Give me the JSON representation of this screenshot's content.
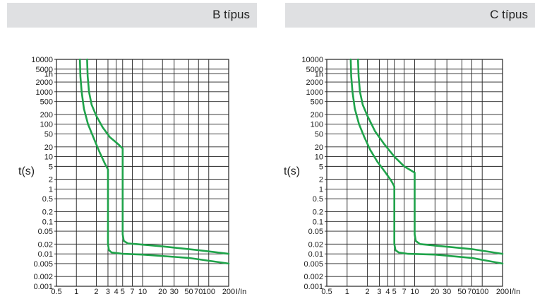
{
  "chart_data": [
    {
      "type": "line",
      "title": "B típus",
      "xlabel": "I/In",
      "ylabel": "t(s)",
      "x_scale": "log",
      "y_scale": "log",
      "xlim": [
        0.5,
        200
      ],
      "ylim": [
        0.001,
        10000
      ],
      "x_ticks": [
        {
          "v": 0.5,
          "label": "0.5"
        },
        {
          "v": 1,
          "label": "1"
        },
        {
          "v": 2,
          "label": "2"
        },
        {
          "v": 3,
          "label": "3"
        },
        {
          "v": 4,
          "label": "4"
        },
        {
          "v": 5,
          "label": "5"
        },
        {
          "v": 7,
          "label": "7"
        },
        {
          "v": 10,
          "label": "10"
        },
        {
          "v": 20,
          "label": "20"
        },
        {
          "v": 30,
          "label": "30"
        },
        {
          "v": 50,
          "label": "50"
        },
        {
          "v": 70,
          "label": "70"
        },
        {
          "v": 100,
          "label": "100"
        },
        {
          "v": 200,
          "label": "200"
        }
      ],
      "y_ticks": [
        {
          "v": 10000,
          "label": "10000"
        },
        {
          "v": 5000,
          "label": "5000"
        },
        {
          "v": 3600,
          "label": "1h"
        },
        {
          "v": 2000,
          "label": "2000"
        },
        {
          "v": 1000,
          "label": "1000"
        },
        {
          "v": 500,
          "label": "500"
        },
        {
          "v": 200,
          "label": "200"
        },
        {
          "v": 100,
          "label": "100"
        },
        {
          "v": 50,
          "label": "50"
        },
        {
          "v": 20,
          "label": "20"
        },
        {
          "v": 10,
          "label": "10"
        },
        {
          "v": 5,
          "label": "5"
        },
        {
          "v": 2,
          "label": "2"
        },
        {
          "v": 1,
          "label": "1"
        },
        {
          "v": 0.5,
          "label": "0.5"
        },
        {
          "v": 0.2,
          "label": "0.2"
        },
        {
          "v": 0.1,
          "label": "0.1"
        },
        {
          "v": 0.05,
          "label": "0.05"
        },
        {
          "v": 0.02,
          "label": "0.02"
        },
        {
          "v": 0.01,
          "label": "0.01"
        },
        {
          "v": 0.005,
          "label": "0.005"
        },
        {
          "v": 0.002,
          "label": "0.002"
        },
        {
          "v": 0.001,
          "label": "0.001"
        }
      ],
      "grid": true,
      "line_color": "#1fa34a",
      "series": [
        {
          "x": [
            1.13,
            1.15,
            1.2,
            1.3,
            1.5,
            1.8,
            2.2,
            2.7,
            3.0,
            3.0,
            3.1,
            3.4,
            5,
            10,
            50,
            200
          ],
          "y": [
            10000,
            3000,
            1000,
            300,
            100,
            40,
            15,
            6,
            4.0,
            0.02,
            0.013,
            0.011,
            0.01,
            0.0095,
            0.0075,
            0.005
          ]
        },
        {
          "x": [
            1.45,
            1.48,
            1.55,
            1.7,
            2.0,
            2.5,
            3.2,
            4.2,
            5.0,
            5.0,
            5.2,
            6.0,
            8,
            20,
            70,
            200
          ],
          "y": [
            10000,
            3000,
            1000,
            400,
            180,
            80,
            40,
            25,
            18,
            0.04,
            0.025,
            0.021,
            0.02,
            0.017,
            0.013,
            0.01
          ]
        }
      ]
    },
    {
      "type": "line",
      "title": "C típus",
      "xlabel": "I/In",
      "ylabel": "t(s)",
      "x_scale": "log",
      "y_scale": "log",
      "xlim": [
        0.5,
        200
      ],
      "ylim": [
        0.001,
        10000
      ],
      "x_ticks": [
        {
          "v": 0.5,
          "label": "0.5"
        },
        {
          "v": 1,
          "label": "1"
        },
        {
          "v": 2,
          "label": "2"
        },
        {
          "v": 3,
          "label": "3"
        },
        {
          "v": 4,
          "label": "4"
        },
        {
          "v": 5,
          "label": "5"
        },
        {
          "v": 7,
          "label": "7"
        },
        {
          "v": 10,
          "label": "10"
        },
        {
          "v": 20,
          "label": "20"
        },
        {
          "v": 30,
          "label": "30"
        },
        {
          "v": 50,
          "label": "50"
        },
        {
          "v": 70,
          "label": "70"
        },
        {
          "v": 100,
          "label": "100"
        },
        {
          "v": 200,
          "label": "200"
        }
      ],
      "y_ticks": [
        {
          "v": 10000,
          "label": "10000"
        },
        {
          "v": 5000,
          "label": "5000"
        },
        {
          "v": 3600,
          "label": "1h"
        },
        {
          "v": 2000,
          "label": "2000"
        },
        {
          "v": 1000,
          "label": "1000"
        },
        {
          "v": 500,
          "label": "500"
        },
        {
          "v": 200,
          "label": "200"
        },
        {
          "v": 100,
          "label": "100"
        },
        {
          "v": 50,
          "label": "50"
        },
        {
          "v": 20,
          "label": "20"
        },
        {
          "v": 10,
          "label": "10"
        },
        {
          "v": 5,
          "label": "5"
        },
        {
          "v": 2,
          "label": "2"
        },
        {
          "v": 1,
          "label": "1"
        },
        {
          "v": 0.5,
          "label": "0.5"
        },
        {
          "v": 0.2,
          "label": "0.2"
        },
        {
          "v": 0.1,
          "label": "0.1"
        },
        {
          "v": 0.05,
          "label": "0.05"
        },
        {
          "v": 0.02,
          "label": "0.02"
        },
        {
          "v": 0.01,
          "label": "0.01"
        },
        {
          "v": 0.005,
          "label": "0.005"
        },
        {
          "v": 0.002,
          "label": "0.002"
        },
        {
          "v": 0.001,
          "label": "0.001"
        }
      ],
      "grid": true,
      "line_color": "#1fa34a",
      "series": [
        {
          "x": [
            1.13,
            1.15,
            1.2,
            1.3,
            1.5,
            1.8,
            2.2,
            2.8,
            3.6,
            4.5,
            5.0,
            5.0,
            5.2,
            5.8,
            8,
            20,
            70,
            200
          ],
          "y": [
            10000,
            3000,
            1000,
            300,
            100,
            40,
            16,
            7,
            3.5,
            1.8,
            1.2,
            0.02,
            0.013,
            0.011,
            0.01,
            0.0095,
            0.0075,
            0.005
          ]
        },
        {
          "x": [
            1.45,
            1.48,
            1.55,
            1.7,
            2.0,
            2.6,
            3.5,
            5.0,
            7.0,
            10.0,
            10.0,
            10.4,
            12,
            20,
            70,
            200
          ],
          "y": [
            10000,
            3000,
            1000,
            400,
            180,
            60,
            25,
            10,
            5,
            3.2,
            0.04,
            0.025,
            0.02,
            0.018,
            0.014,
            0.01
          ]
        }
      ]
    }
  ]
}
